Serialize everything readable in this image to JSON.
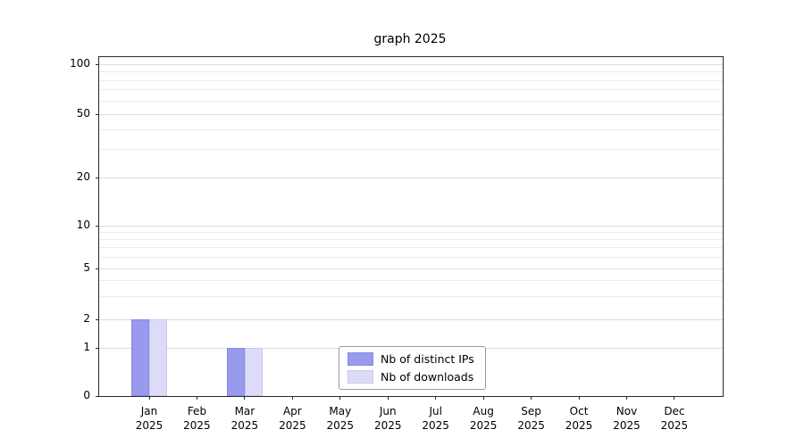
{
  "chart_data": {
    "type": "bar",
    "title": "graph 2025",
    "year": "2025",
    "categories": [
      "Jan",
      "Feb",
      "Mar",
      "Apr",
      "May",
      "Jun",
      "Jul",
      "Aug",
      "Sep",
      "Oct",
      "Nov",
      "Dec"
    ],
    "series": [
      {
        "name": "Nb of distinct IPs",
        "color": "#9999ee",
        "edge_color": "#8a8ae2",
        "values": [
          2,
          0,
          1,
          0,
          0,
          0,
          0,
          0,
          0,
          0,
          0,
          0
        ]
      },
      {
        "name": "Nb of downloads",
        "color": "#dcdcf8",
        "edge_color": "#c8c8ef",
        "values": [
          2,
          0,
          1,
          0,
          0,
          0,
          0,
          0,
          0,
          0,
          0,
          0
        ]
      }
    ],
    "y_ticks": [
      0,
      1,
      2,
      5,
      10,
      20,
      50,
      100
    ],
    "y_minor_ticks": [
      3,
      4,
      6,
      7,
      8,
      9,
      30,
      40,
      60,
      70,
      80,
      90
    ],
    "y_scale": "symlog",
    "ylim": [
      0,
      110
    ],
    "xlabel": "",
    "ylabel": "",
    "grid": true,
    "legend_position": "lower center"
  }
}
